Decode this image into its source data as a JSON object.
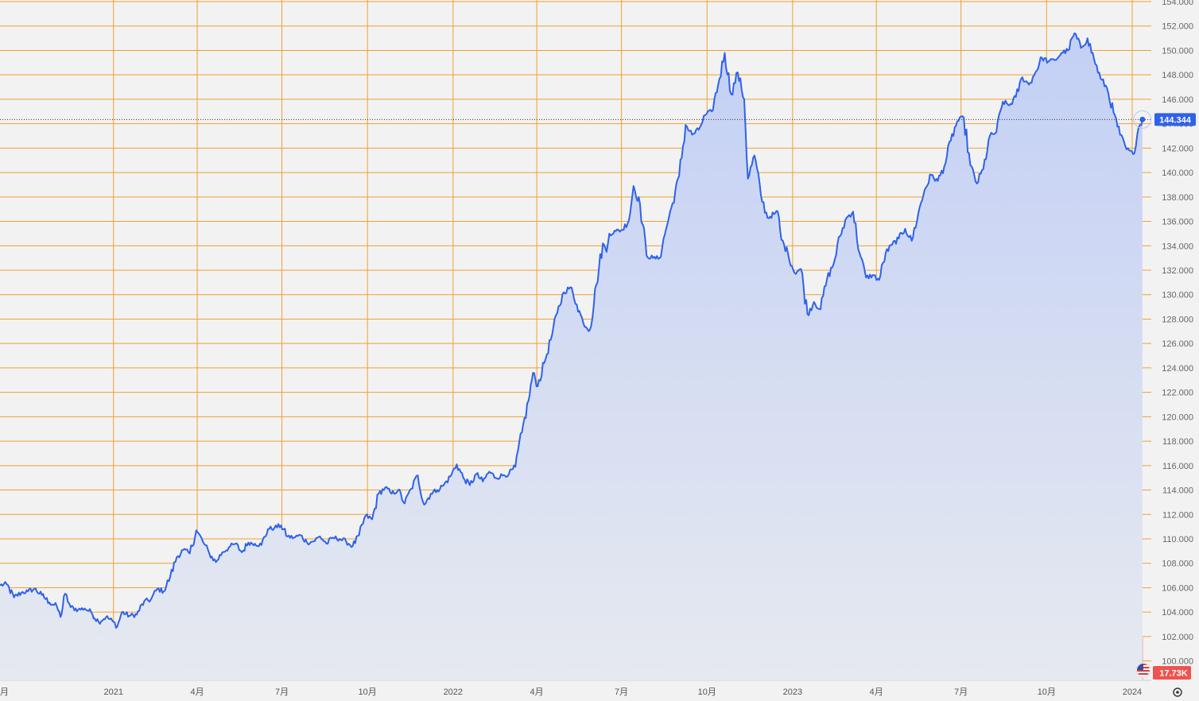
{
  "chart_data": {
    "type": "area",
    "x_ticks": [
      "月",
      "2021",
      "4月",
      "7月",
      "10月",
      "2022",
      "4月",
      "7月",
      "10月",
      "2023",
      "4月",
      "7月",
      "10月",
      "2024"
    ],
    "y_ticks": [
      "100.000",
      "102.000",
      "104.000",
      "106.000",
      "108.000",
      "110.000",
      "112.000",
      "114.000",
      "116.000",
      "118.000",
      "120.000",
      "122.000",
      "124.000",
      "126.000",
      "128.000",
      "130.000",
      "132.000",
      "134.000",
      "136.000",
      "138.000",
      "140.000",
      "142.000",
      "144.000",
      "146.000",
      "148.000",
      "150.000",
      "152.000",
      "154.000"
    ],
    "ylim": [
      99.0,
      154.0
    ],
    "x_range": [
      "2020-09-01",
      "2024-01-13"
    ],
    "grid": true,
    "last_price": 144.344,
    "last_price_label": "144.344",
    "volume_label": "17.73K",
    "colors": {
      "line": "#2e62e8",
      "fill_top": "#c3d0f5",
      "fill_bottom": "#e6e9f0",
      "grid": "#f0a030",
      "vol_up": "#5cc0b0",
      "vol_down": "#f08a8a",
      "badge": "#2e62e8",
      "vol_badge": "#ef5350"
    },
    "x_tick_dates": [
      "2020-09-01",
      "2021-01-01",
      "2021-04-01",
      "2021-07-01",
      "2021-10-01",
      "2022-01-01",
      "2022-04-01",
      "2022-07-01",
      "2022-10-01",
      "2023-01-01",
      "2023-04-01",
      "2023-07-01",
      "2023-10-01",
      "2024-01-01"
    ],
    "series": [
      {
        "values": [
          [
            "2020-09-01",
            106.2
          ],
          [
            "2020-09-08",
            106.3
          ],
          [
            "2020-09-16",
            105.2
          ],
          [
            "2020-09-24",
            105.6
          ],
          [
            "2020-10-01",
            105.7
          ],
          [
            "2020-10-08",
            105.9
          ],
          [
            "2020-10-16",
            105.4
          ],
          [
            "2020-10-24",
            104.8
          ],
          [
            "2020-11-01",
            104.5
          ],
          [
            "2020-11-05",
            103.6
          ],
          [
            "2020-11-10",
            105.5
          ],
          [
            "2020-11-16",
            104.4
          ],
          [
            "2020-11-24",
            104.2
          ],
          [
            "2020-12-01",
            104.3
          ],
          [
            "2020-12-08",
            104.0
          ],
          [
            "2020-12-16",
            103.2
          ],
          [
            "2020-12-24",
            103.6
          ],
          [
            "2021-01-01",
            103.2
          ],
          [
            "2021-01-05",
            102.8
          ],
          [
            "2021-01-10",
            104.0
          ],
          [
            "2021-01-18",
            103.7
          ],
          [
            "2021-01-26",
            103.8
          ],
          [
            "2021-02-03",
            104.9
          ],
          [
            "2021-02-10",
            105.0
          ],
          [
            "2021-02-17",
            105.9
          ],
          [
            "2021-02-24",
            105.7
          ],
          [
            "2021-03-03",
            106.9
          ],
          [
            "2021-03-10",
            108.5
          ],
          [
            "2021-03-17",
            109.1
          ],
          [
            "2021-03-24",
            108.8
          ],
          [
            "2021-03-31",
            110.7
          ],
          [
            "2021-04-07",
            109.8
          ],
          [
            "2021-04-14",
            108.8
          ],
          [
            "2021-04-21",
            108.1
          ],
          [
            "2021-04-28",
            108.9
          ],
          [
            "2021-05-05",
            109.3
          ],
          [
            "2021-05-12",
            109.6
          ],
          [
            "2021-05-19",
            108.9
          ],
          [
            "2021-05-26",
            109.7
          ],
          [
            "2021-06-02",
            109.6
          ],
          [
            "2021-06-09",
            109.5
          ],
          [
            "2021-06-16",
            110.8
          ],
          [
            "2021-06-23",
            110.9
          ],
          [
            "2021-06-30",
            111.1
          ],
          [
            "2021-07-07",
            110.2
          ],
          [
            "2021-07-14",
            110.1
          ],
          [
            "2021-07-21",
            110.3
          ],
          [
            "2021-07-28",
            109.7
          ],
          [
            "2021-08-04",
            109.8
          ],
          [
            "2021-08-11",
            110.2
          ],
          [
            "2021-08-18",
            109.6
          ],
          [
            "2021-08-25",
            110.1
          ],
          [
            "2021-09-01",
            110.0
          ],
          [
            "2021-09-08",
            109.8
          ],
          [
            "2021-09-15",
            109.4
          ],
          [
            "2021-09-22",
            110.3
          ],
          [
            "2021-09-29",
            111.9
          ],
          [
            "2021-10-06",
            111.6
          ],
          [
            "2021-10-13",
            113.7
          ],
          [
            "2021-10-20",
            114.2
          ],
          [
            "2021-10-27",
            113.7
          ],
          [
            "2021-11-03",
            114.0
          ],
          [
            "2021-11-10",
            112.9
          ],
          [
            "2021-11-17",
            114.1
          ],
          [
            "2021-11-24",
            115.2
          ],
          [
            "2021-12-01",
            112.8
          ],
          [
            "2021-12-08",
            113.7
          ],
          [
            "2021-12-15",
            114.0
          ],
          [
            "2021-12-22",
            114.4
          ],
          [
            "2021-12-29",
            115.1
          ],
          [
            "2022-01-05",
            116.1
          ],
          [
            "2022-01-12",
            115.0
          ],
          [
            "2022-01-19",
            114.4
          ],
          [
            "2022-01-26",
            115.3
          ],
          [
            "2022-02-02",
            114.7
          ],
          [
            "2022-02-09",
            115.5
          ],
          [
            "2022-02-16",
            115.0
          ],
          [
            "2022-02-23",
            115.2
          ],
          [
            "2022-03-02",
            115.3
          ],
          [
            "2022-03-09",
            115.9
          ],
          [
            "2022-03-16",
            118.7
          ],
          [
            "2022-03-23",
            121.3
          ],
          [
            "2022-03-28",
            123.6
          ],
          [
            "2022-04-02",
            122.5
          ],
          [
            "2022-04-09",
            124.4
          ],
          [
            "2022-04-16",
            126.3
          ],
          [
            "2022-04-23",
            128.5
          ],
          [
            "2022-04-30",
            130.2
          ],
          [
            "2022-05-07",
            130.6
          ],
          [
            "2022-05-14",
            129.2
          ],
          [
            "2022-05-21",
            127.7
          ],
          [
            "2022-05-28",
            127.1
          ],
          [
            "2022-06-04",
            130.8
          ],
          [
            "2022-06-11",
            134.2
          ],
          [
            "2022-06-15",
            133.5
          ],
          [
            "2022-06-18",
            135.0
          ],
          [
            "2022-06-25",
            135.2
          ],
          [
            "2022-07-02",
            135.3
          ],
          [
            "2022-07-09",
            136.1
          ],
          [
            "2022-07-14",
            138.9
          ],
          [
            "2022-07-21",
            137.4
          ],
          [
            "2022-07-28",
            133.2
          ],
          [
            "2022-08-04",
            133.0
          ],
          [
            "2022-08-11",
            133.0
          ],
          [
            "2022-08-18",
            135.4
          ],
          [
            "2022-08-25",
            137.5
          ],
          [
            "2022-09-01",
            139.7
          ],
          [
            "2022-09-08",
            143.9
          ],
          [
            "2022-09-15",
            143.1
          ],
          [
            "2022-09-22",
            143.5
          ],
          [
            "2022-09-29",
            144.7
          ],
          [
            "2022-10-06",
            145.0
          ],
          [
            "2022-10-13",
            147.2
          ],
          [
            "2022-10-20",
            149.8
          ],
          [
            "2022-10-27",
            146.4
          ],
          [
            "2022-11-03",
            148.2
          ],
          [
            "2022-11-10",
            146.0
          ],
          [
            "2022-11-14",
            139.5
          ],
          [
            "2022-11-21",
            141.4
          ],
          [
            "2022-11-28",
            138.1
          ],
          [
            "2022-12-05",
            136.3
          ],
          [
            "2022-12-12",
            136.6
          ],
          [
            "2022-12-16",
            136.8
          ],
          [
            "2022-12-20",
            134.5
          ],
          [
            "2022-12-27",
            133.4
          ],
          [
            "2023-01-03",
            131.8
          ],
          [
            "2023-01-10",
            132.1
          ],
          [
            "2023-01-17",
            128.4
          ],
          [
            "2023-01-24",
            129.4
          ],
          [
            "2023-01-31",
            128.8
          ],
          [
            "2023-02-07",
            131.3
          ],
          [
            "2023-02-14",
            132.5
          ],
          [
            "2023-02-21",
            134.8
          ],
          [
            "2023-02-28",
            136.3
          ],
          [
            "2023-03-07",
            136.8
          ],
          [
            "2023-03-14",
            133.4
          ],
          [
            "2023-03-21",
            131.4
          ],
          [
            "2023-03-28",
            131.6
          ],
          [
            "2023-04-04",
            131.2
          ],
          [
            "2023-04-11",
            133.4
          ],
          [
            "2023-04-18",
            134.1
          ],
          [
            "2023-04-25",
            134.6
          ],
          [
            "2023-05-02",
            135.4
          ],
          [
            "2023-05-09",
            134.4
          ],
          [
            "2023-05-16",
            136.6
          ],
          [
            "2023-05-23",
            138.6
          ],
          [
            "2023-05-30",
            139.8
          ],
          [
            "2023-06-06",
            139.3
          ],
          [
            "2023-06-13",
            140.5
          ],
          [
            "2023-06-20",
            142.6
          ],
          [
            "2023-06-27",
            144.2
          ],
          [
            "2023-07-04",
            144.5
          ],
          [
            "2023-07-11",
            140.6
          ],
          [
            "2023-07-18",
            139.1
          ],
          [
            "2023-07-25",
            140.3
          ],
          [
            "2023-08-01",
            143.0
          ],
          [
            "2023-08-08",
            143.3
          ],
          [
            "2023-08-15",
            145.8
          ],
          [
            "2023-08-22",
            145.5
          ],
          [
            "2023-08-29",
            146.2
          ],
          [
            "2023-09-05",
            147.8
          ],
          [
            "2023-09-12",
            147.2
          ],
          [
            "2023-09-19",
            148.2
          ],
          [
            "2023-09-26",
            149.4
          ],
          [
            "2023-10-03",
            149.1
          ],
          [
            "2023-10-10",
            149.2
          ],
          [
            "2023-10-17",
            149.8
          ],
          [
            "2023-10-24",
            150.0
          ],
          [
            "2023-10-31",
            151.4
          ],
          [
            "2023-11-07",
            150.2
          ],
          [
            "2023-11-14",
            151.0
          ],
          [
            "2023-11-21",
            149.3
          ],
          [
            "2023-11-28",
            147.7
          ],
          [
            "2023-12-05",
            146.9
          ],
          [
            "2023-12-12",
            144.9
          ],
          [
            "2023-12-19",
            143.1
          ],
          [
            "2023-12-26",
            141.9
          ],
          [
            "2024-01-02",
            141.5
          ],
          [
            "2024-01-08",
            143.7
          ],
          [
            "2024-01-12",
            144.3
          ]
        ]
      }
    ]
  }
}
